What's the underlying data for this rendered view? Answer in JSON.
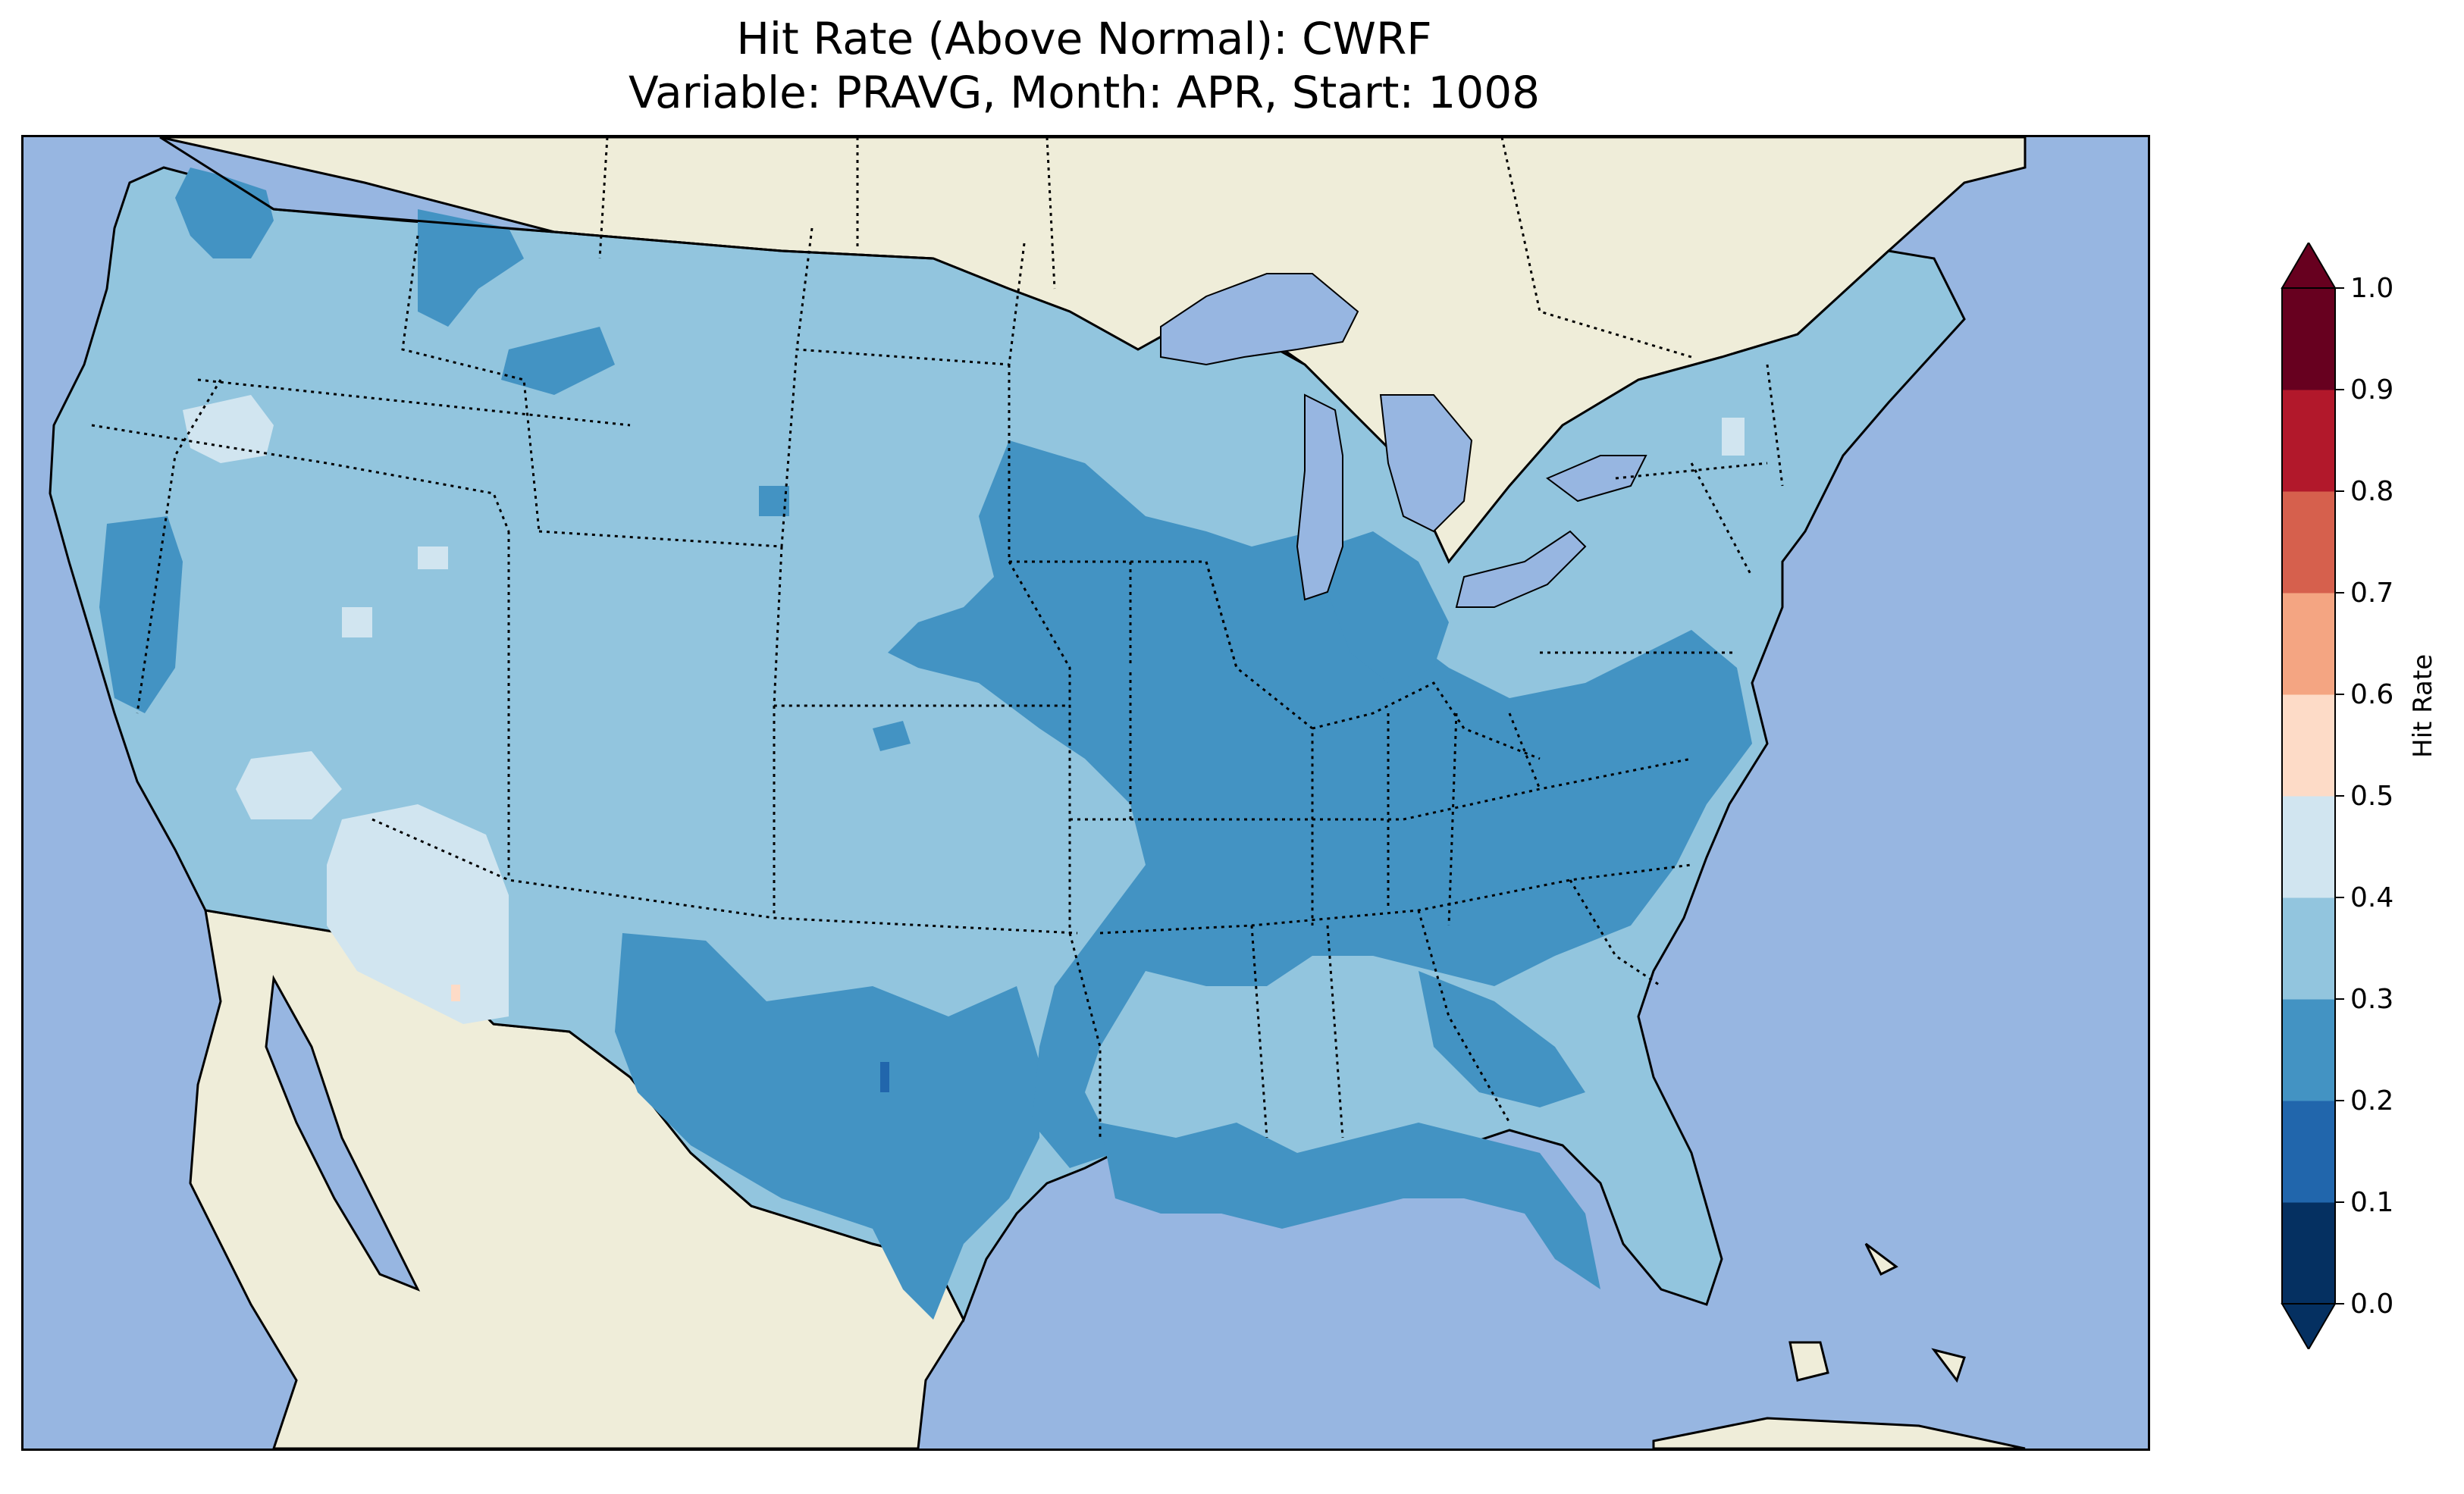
{
  "title": {
    "line1": "Hit Rate (Above Normal): CWRF",
    "line2": "Variable: PRAVG, Month: APR, Start: 1008"
  },
  "map": {
    "region": "Contiguous United States",
    "ocean_color": "#97b6e1",
    "land_color": "#efedd9",
    "lake_color": "#97b6e1",
    "state_borders": "dotted",
    "coastlines": "solid"
  },
  "colorbar": {
    "label": "Hit Rate",
    "ticks": [
      "0.0",
      "0.1",
      "0.2",
      "0.3",
      "0.4",
      "0.5",
      "0.6",
      "0.7",
      "0.8",
      "0.9",
      "1.0"
    ],
    "bins": [
      {
        "range": [
          0.0,
          0.1
        ],
        "color": "#053061"
      },
      {
        "range": [
          0.1,
          0.2
        ],
        "color": "#2166ac"
      },
      {
        "range": [
          0.2,
          0.3
        ],
        "color": "#4393c3"
      },
      {
        "range": [
          0.3,
          0.4
        ],
        "color": "#92c5de"
      },
      {
        "range": [
          0.4,
          0.5
        ],
        "color": "#d1e5f0"
      },
      {
        "range": [
          0.5,
          0.6
        ],
        "color": "#fddbc7"
      },
      {
        "range": [
          0.6,
          0.7
        ],
        "color": "#f4a582"
      },
      {
        "range": [
          0.7,
          0.8
        ],
        "color": "#d6604d"
      },
      {
        "range": [
          0.8,
          0.9
        ],
        "color": "#b2182b"
      },
      {
        "range": [
          0.9,
          1.0
        ],
        "color": "#67001f"
      }
    ],
    "extend": "both"
  }
}
